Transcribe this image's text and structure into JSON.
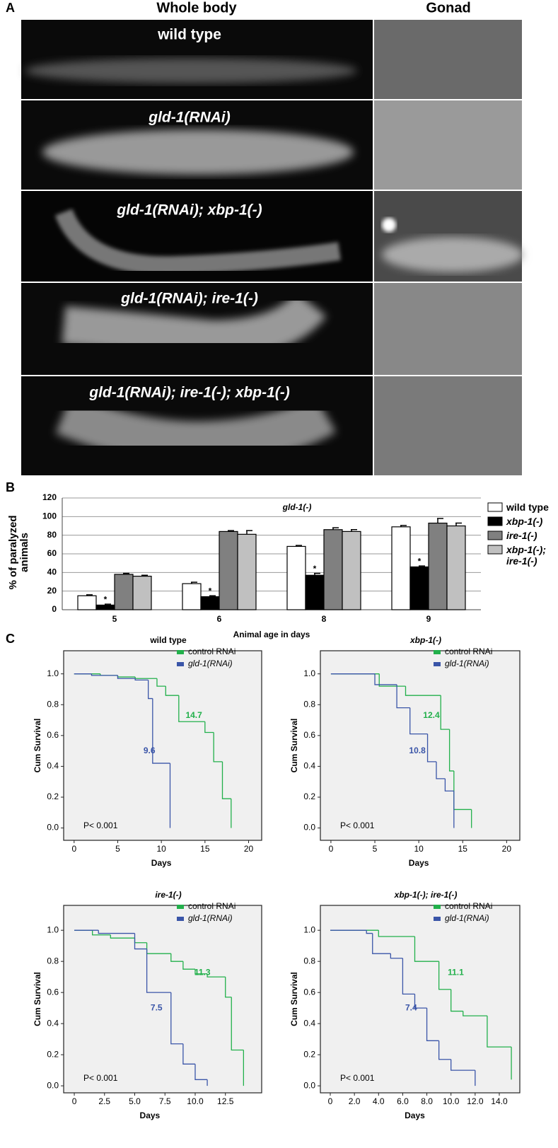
{
  "panel_labels": [
    "A",
    "B",
    "C"
  ],
  "panel_a": {
    "columns": [
      "Whole body",
      "Gonad"
    ],
    "rows": [
      "wild type",
      "gld-1(RNAi)",
      "gld-1(RNAi); xbp-1(-)",
      "gld-1(RNAi); ire-1(-)",
      "gld-1(RNAi); ire-1(-); xbp-1(-)"
    ]
  },
  "chart_data": [
    {
      "type": "bar",
      "title": "gld-1(-)",
      "ylabel": "% of paralyzed animals",
      "xlabel": "Animal age in days",
      "categories": [
        "5",
        "6",
        "8",
        "9"
      ],
      "ylim": [
        0,
        120
      ],
      "yticks": [
        0,
        20,
        40,
        60,
        80,
        100,
        120
      ],
      "grid": true,
      "legend": "right",
      "series": [
        {
          "name": "wild type",
          "color": "#ffffff",
          "values": [
            15,
            28,
            68,
            89
          ],
          "errors": [
            1,
            1.5,
            1,
            1.5
          ]
        },
        {
          "name": "xbp-1(-)",
          "color": "#000000",
          "values": [
            5,
            14,
            37,
            46
          ],
          "errors": [
            1,
            1,
            2,
            1
          ]
        },
        {
          "name": "ire-1(-)",
          "color": "#808080",
          "values": [
            38,
            84,
            86,
            93
          ],
          "errors": [
            1,
            1,
            2,
            5
          ]
        },
        {
          "name": "xbp-1(-); ire-1(-)",
          "color": "#c0c0c0",
          "values": [
            36,
            81,
            84,
            90
          ],
          "errors": [
            1,
            4,
            2,
            3
          ]
        }
      ],
      "annotations": [
        {
          "text": "*",
          "category": "5",
          "series": "xbp-1(-)"
        },
        {
          "text": "*",
          "category": "6",
          "series": "xbp-1(-)"
        },
        {
          "text": "*",
          "category": "8",
          "series": "xbp-1(-)"
        },
        {
          "text": "*",
          "category": "9",
          "series": "xbp-1(-)"
        }
      ]
    },
    {
      "type": "survival",
      "title": "wild type",
      "xlabel": "Days",
      "ylabel": "Cum Survival",
      "note": "P< 0.001",
      "xlim": [
        -1.2,
        21.5
      ],
      "ylim": [
        -0.08,
        1.15
      ],
      "xticks": [
        0,
        5,
        10,
        15,
        20
      ],
      "yticks": [
        {
          "value": 0,
          "label": "0.0"
        },
        0.2,
        0.4,
        0.6,
        0.8,
        {
          "value": 1,
          "label": "1.0"
        }
      ],
      "series": [
        {
          "name": "control RNAi",
          "color": "#22b04b",
          "median": 14.7,
          "x": [
            0,
            3,
            5,
            7,
            9.5,
            10.5,
            12,
            15,
            16,
            17,
            18
          ],
          "values": [
            1,
            0.99,
            0.98,
            0.97,
            0.92,
            0.86,
            0.69,
            0.62,
            0.43,
            0.19,
            0
          ]
        },
        {
          "name": "gld-1(RNAi)",
          "color": "#3a55a8",
          "median": 9.6,
          "x": [
            0,
            2,
            5,
            7,
            8.5,
            9,
            11
          ],
          "values": [
            1,
            0.99,
            0.97,
            0.96,
            0.84,
            0.42,
            0
          ]
        }
      ]
    },
    {
      "type": "survival",
      "title": "xbp-1(-)",
      "xlabel": "Days",
      "ylabel": "Cum Survival",
      "note": "P< 0.001",
      "xlim": [
        -1.2,
        21.5
      ],
      "ylim": [
        -0.08,
        1.15
      ],
      "xticks": [
        0,
        5,
        10,
        15,
        20
      ],
      "yticks": [
        {
          "value": 0,
          "label": "0.0"
        },
        0.2,
        0.4,
        0.6,
        0.8,
        {
          "value": 1,
          "label": "1.0"
        }
      ],
      "series": [
        {
          "name": "control RNAi",
          "color": "#22b04b",
          "median": 12.4,
          "x": [
            0,
            5.5,
            8.5,
            12.5,
            13.5,
            14,
            16
          ],
          "values": [
            1,
            0.92,
            0.86,
            0.64,
            0.37,
            0.12,
            0
          ]
        },
        {
          "name": "gld-1(RNAi)",
          "color": "#3a55a8",
          "median": 10.8,
          "x": [
            0,
            5,
            7.5,
            9,
            11,
            12,
            13,
            14
          ],
          "values": [
            1,
            0.93,
            0.78,
            0.61,
            0.43,
            0.32,
            0.24,
            0
          ]
        }
      ]
    },
    {
      "type": "survival",
      "title": "ire-1(-)",
      "xlabel": "Days",
      "ylabel": "Cum Survival",
      "note": "P< 0.001",
      "xlim": [
        -0.88,
        15.5
      ],
      "ylim": [
        -0.045,
        1.16
      ],
      "xticks": [
        0,
        2.5,
        {
          "value": 5,
          "label": "5.0"
        },
        7.5,
        {
          "value": 10,
          "label": "10.0"
        },
        12.5
      ],
      "yticks": [
        {
          "value": 0,
          "label": "0.0"
        },
        0.2,
        0.4,
        0.6,
        0.8,
        {
          "value": 1,
          "label": "1.0"
        }
      ],
      "series": [
        {
          "name": "control RNAi",
          "color": "#22b04b",
          "median": 11.3,
          "x": [
            0,
            1.5,
            3,
            5,
            6,
            8,
            9,
            10,
            11,
            12.5,
            13,
            14
          ],
          "values": [
            1,
            0.97,
            0.95,
            0.92,
            0.85,
            0.8,
            0.75,
            0.72,
            0.7,
            0.57,
            0.23,
            0
          ]
        },
        {
          "name": "gld-1(RNAi)",
          "color": "#3a55a8",
          "median": 7.5,
          "x": [
            0,
            2,
            5,
            6,
            8,
            9,
            10,
            11
          ],
          "values": [
            1,
            0.98,
            0.88,
            0.6,
            0.27,
            0.14,
            0.04,
            0
          ]
        }
      ]
    },
    {
      "type": "survival",
      "title": "xbp-1(-); ire-1(-)",
      "xlabel": "Days",
      "ylabel": "Cum Survival",
      "note": "P< 0.001",
      "xlim": [
        -0.82,
        15.7
      ],
      "ylim": [
        -0.045,
        1.16
      ],
      "xticks": [
        0,
        {
          "value": 2,
          "label": "2.0"
        },
        {
          "value": 4,
          "label": "4.0"
        },
        {
          "value": 6,
          "label": "6.0"
        },
        {
          "value": 8,
          "label": "8.0"
        },
        {
          "value": 10,
          "label": "10.0"
        },
        {
          "value": 12,
          "label": "12.0"
        },
        {
          "value": 14,
          "label": "14.0"
        }
      ],
      "yticks": [
        {
          "value": 0,
          "label": "0.0"
        },
        0.2,
        0.4,
        0.6,
        0.8,
        {
          "value": 1,
          "label": "1.0"
        }
      ],
      "series": [
        {
          "name": "control RNAi",
          "color": "#22b04b",
          "median": 11.1,
          "x": [
            0,
            4,
            7,
            9,
            10,
            11,
            13,
            15
          ],
          "values": [
            1,
            0.96,
            0.8,
            0.62,
            0.48,
            0.45,
            0.25,
            0.04
          ]
        },
        {
          "name": "gld-1(RNAi)",
          "color": "#3a55a8",
          "median": 7.4,
          "x": [
            0,
            3,
            3.5,
            5,
            6,
            7,
            8,
            9,
            10,
            12
          ],
          "values": [
            1,
            0.98,
            0.85,
            0.82,
            0.59,
            0.5,
            0.29,
            0.17,
            0.1,
            0
          ]
        }
      ]
    }
  ]
}
